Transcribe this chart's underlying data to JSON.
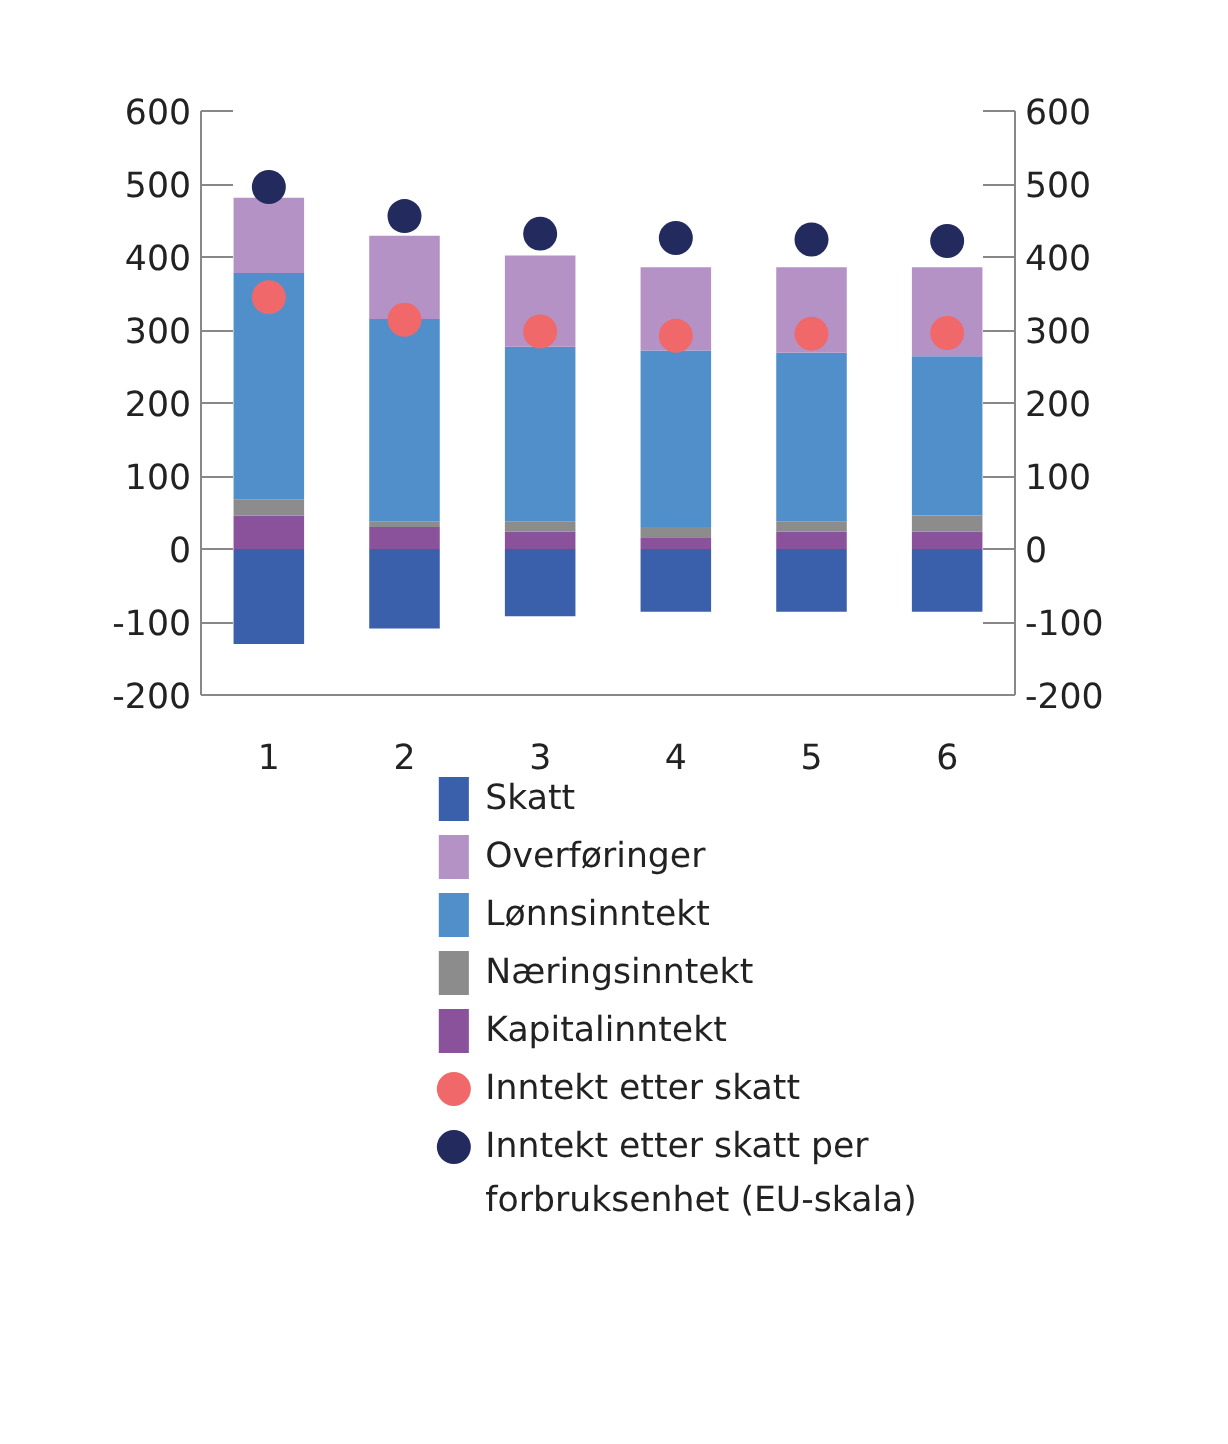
{
  "chart_data": {
    "type": "bar",
    "stacked": true,
    "categories": [
      "1",
      "2",
      "3",
      "4",
      "5",
      "6"
    ],
    "series": [
      {
        "name": "Skatt",
        "color": "#3a5fab",
        "values": [
          -130,
          -109,
          -92,
          -86,
          -86,
          -86
        ]
      },
      {
        "name": "Kapitalinntekt",
        "color": "#8b529c",
        "values": [
          46,
          30,
          24,
          16,
          24,
          24
        ]
      },
      {
        "name": "Næringsinntekt",
        "color": "#8c8c8c",
        "values": [
          22,
          8,
          14,
          14,
          14,
          22
        ]
      },
      {
        "name": "Lønnsinntekt",
        "color": "#518fcb",
        "values": [
          310,
          277,
          239,
          242,
          231,
          218
        ]
      },
      {
        "name": "Overføringer",
        "color": "#b592c5",
        "values": [
          103,
          114,
          125,
          114,
          117,
          122
        ]
      },
      {
        "name": "Inntekt etter skatt",
        "type": "scatter",
        "color": "#f0686a",
        "values": [
          345,
          314,
          298,
          292,
          295,
          296
        ]
      },
      {
        "name": "Inntekt etter skatt per forbruksenhet (EU-skala)",
        "type": "scatter",
        "color": "#222a5e",
        "values": [
          496,
          456,
          432,
          426,
          424,
          422
        ]
      }
    ],
    "ylim": [
      -200,
      600
    ],
    "yticks": [
      -200,
      -100,
      0,
      100,
      200,
      300,
      400,
      500,
      600
    ],
    "y2lim": [
      -200,
      600
    ],
    "y2ticks": [
      -200,
      -100,
      0,
      100,
      200,
      300,
      400,
      500,
      600
    ],
    "grid": false,
    "legend": "bottom",
    "marker": "circle"
  }
}
